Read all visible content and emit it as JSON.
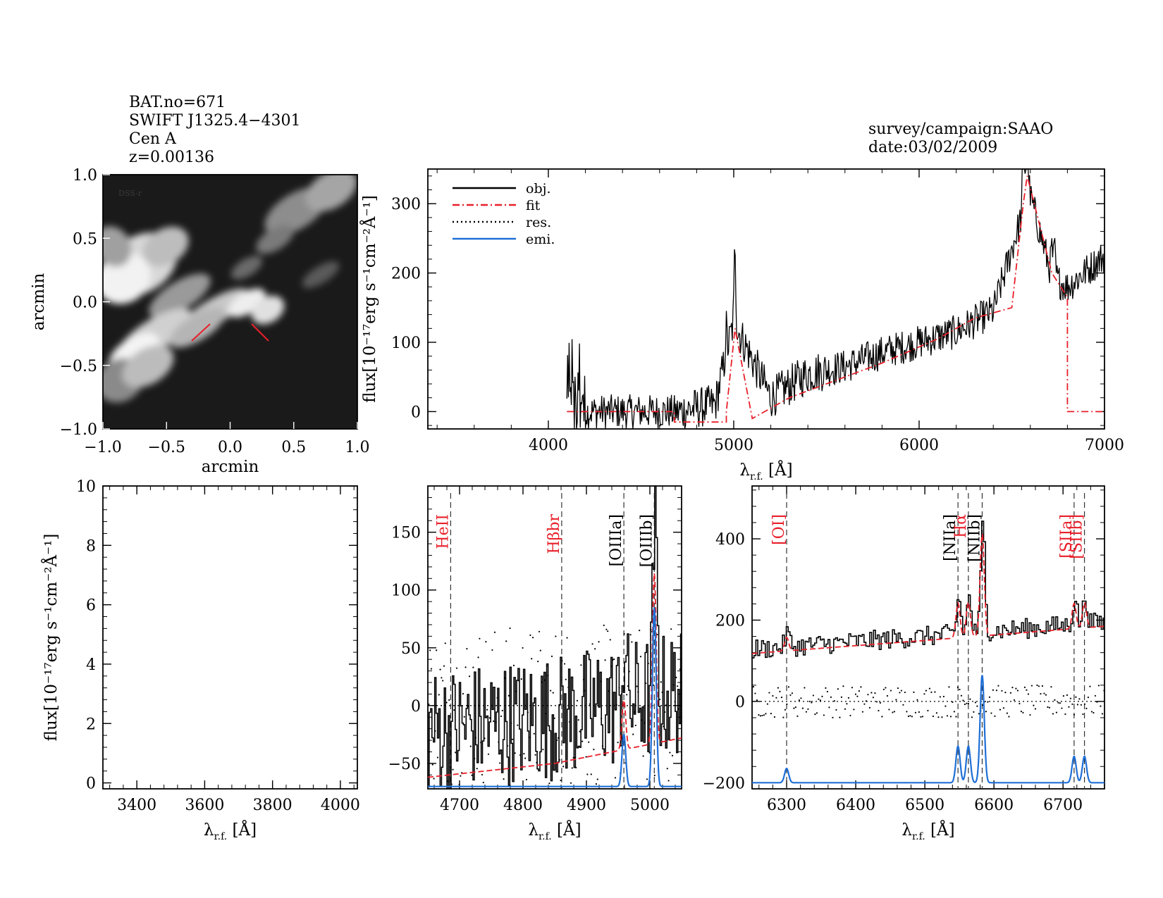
{
  "header": {
    "bat_no": "BAT.no=671",
    "swift": "SWIFT J1325.4−4301",
    "name": "Cen A",
    "z": "z=0.00136",
    "survey": "survey/campaign:SAAO",
    "date": "date:03/02/2009"
  },
  "image_panel": {
    "label": "DSS-r",
    "xlabel": "arcmin",
    "ylabel": "arcmin",
    "xlim": [
      -1.0,
      1.0
    ],
    "ylim": [
      -1.0,
      1.0
    ],
    "xticks": [
      "−1.0",
      "−0.5",
      "0.0",
      "0.5",
      "1.0"
    ],
    "yticks": [
      "−1.0",
      "−0.5",
      "0.0",
      "0.5",
      "1.0"
    ]
  },
  "colors": {
    "obj": "#000000",
    "fit": "#e8202a",
    "res": "#000000",
    "emi": "#1f6fd6",
    "image_bg": "#1a1a1a"
  },
  "chart_data": [
    {
      "type": "line",
      "id": "full_spectrum",
      "title": "",
      "xlabel": "λr.f. [Å]",
      "ylabel": "flux[10⁻¹⁷erg s⁻¹cm⁻²Å⁻¹]",
      "xlim": [
        3350,
        7000
      ],
      "ylim": [
        -25,
        350
      ],
      "xticks": [
        4000,
        5000,
        6000,
        7000
      ],
      "yticks": [
        0,
        100,
        200,
        300
      ],
      "legend": {
        "position": "top-left",
        "entries": [
          "obj.",
          "fit",
          "res.",
          "emi."
        ]
      },
      "series": [
        {
          "name": "obj.",
          "style": "solid",
          "x": [
            4100,
            4300,
            4500,
            4700,
            4900,
            5000,
            5200,
            5400,
            5600,
            5800,
            6000,
            6200,
            6400,
            6562,
            6580,
            6716,
            6800,
            7000
          ],
          "values": [
            0,
            0,
            0,
            0,
            10,
            130,
            20,
            55,
            65,
            85,
            100,
            115,
            145,
            290,
            330,
            195,
            180,
            225
          ]
        },
        {
          "name": "fit",
          "style": "dashdot",
          "x": [
            4100,
            4680,
            4680,
            4960,
            4960,
            5007,
            5100,
            5300,
            5500,
            5800,
            6100,
            6200,
            6300,
            6500,
            6562,
            6583,
            6716,
            6800,
            6800,
            7000
          ],
          "values": [
            0,
            0,
            -15,
            -15,
            0,
            120,
            -10,
            20,
            40,
            70,
            105,
            120,
            135,
            150,
            300,
            340,
            200,
            165,
            0,
            0
          ]
        }
      ]
    },
    {
      "type": "line",
      "id": "zoom_blue_empty",
      "xlabel": "λr.f. [Å]",
      "ylabel": "flux[10⁻¹⁷erg s⁻¹cm⁻²Å⁻¹]",
      "xlim": [
        3300,
        4050
      ],
      "ylim": [
        -0.2,
        10
      ],
      "xticks": [
        3400,
        3600,
        3800,
        4000
      ],
      "yticks": [
        0,
        2,
        4,
        6,
        8,
        10
      ],
      "series": []
    },
    {
      "type": "line",
      "id": "zoom_hbeta_oiii",
      "xlabel": "λr.f. [Å]",
      "ylabel": "",
      "xlim": [
        4650,
        5050
      ],
      "ylim": [
        -72,
        190
      ],
      "xticks": [
        4700,
        4800,
        4900,
        5000
      ],
      "yticks": [
        -50,
        0,
        50,
        100,
        150
      ],
      "lines": [
        {
          "label": "HeII",
          "wave": 4686,
          "color": "red"
        },
        {
          "label": "Hβbr",
          "wave": 4861,
          "color": "red"
        },
        {
          "label": "[OIIIa]",
          "wave": 4959,
          "color": "black"
        },
        {
          "label": "[OIIIb]",
          "wave": 5007,
          "color": "black"
        }
      ],
      "series": [
        {
          "name": "emi.",
          "peaks": [
            {
              "center": 4959,
              "amplitude": 45,
              "sigma": 3
            },
            {
              "center": 5007,
              "amplitude": 155,
              "sigma": 3
            }
          ],
          "baseline": -70
        },
        {
          "name": "fit",
          "style": "dashed",
          "x": [
            4650,
            4850,
            5050
          ],
          "values": [
            -62,
            -50,
            -28
          ]
        }
      ]
    },
    {
      "type": "line",
      "id": "zoom_halpha",
      "xlabel": "λr.f. [Å]",
      "ylabel": "",
      "xlim": [
        6250,
        6760
      ],
      "ylim": [
        -215,
        530
      ],
      "xticks": [
        6300,
        6400,
        6500,
        6600,
        6700
      ],
      "yticks": [
        -200,
        0,
        200,
        400
      ],
      "lines": [
        {
          "label": "[OI]",
          "wave": 6300,
          "color": "red"
        },
        {
          "label": "[NIIa]",
          "wave": 6548,
          "color": "black"
        },
        {
          "label": "Hα",
          "wave": 6563,
          "color": "red"
        },
        {
          "label": "[NIIb]",
          "wave": 6583,
          "color": "black"
        },
        {
          "label": "[SIIa]",
          "wave": 6716,
          "color": "red"
        },
        {
          "label": "[SIIb]",
          "wave": 6731,
          "color": "red"
        }
      ],
      "series": [
        {
          "name": "emi.",
          "baseline": -200,
          "peaks": [
            {
              "center": 6300,
              "amplitude": 35,
              "sigma": 3
            },
            {
              "center": 6548,
              "amplitude": 90,
              "sigma": 3
            },
            {
              "center": 6563,
              "amplitude": 90,
              "sigma": 3
            },
            {
              "center": 6583,
              "amplitude": 265,
              "sigma": 3
            },
            {
              "center": 6716,
              "amplitude": 65,
              "sigma": 3
            },
            {
              "center": 6731,
              "amplitude": 65,
              "sigma": 3
            }
          ]
        },
        {
          "name": "fit",
          "style": "dashed",
          "x": [
            6250,
            6500,
            6760
          ],
          "values": [
            118,
            150,
            185
          ]
        }
      ]
    }
  ]
}
